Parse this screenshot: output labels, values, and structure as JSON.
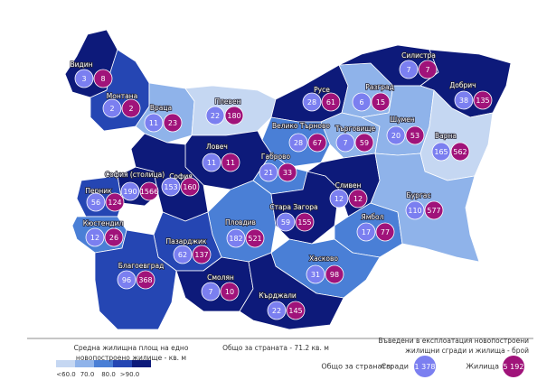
{
  "regions": [
    {
      "name": "Видин",
      "color": "#0d1a7a",
      "buildings": 3,
      "dwellings": 8
    },
    {
      "name": "Монтана",
      "color": "#2546b3",
      "buildings": 2,
      "dwellings": 2
    },
    {
      "name": "Враца",
      "color": "#8fb3ea",
      "buildings": 11,
      "dwellings": 23
    },
    {
      "name": "Плевен",
      "color": "#c5d7f2",
      "buildings": 22,
      "dwellings": 180
    },
    {
      "name": "Русе",
      "color": "#0d1a7a",
      "buildings": 28,
      "dwellings": 61
    },
    {
      "name": "Разград",
      "color": "#8fb3ea",
      "buildings": 6,
      "dwellings": 15
    },
    {
      "name": "Силистра",
      "color": "#0d1a7a",
      "buildings": 7,
      "dwellings": 7
    },
    {
      "name": "Добрич",
      "color": "#0d1a7a",
      "buildings": 38,
      "dwellings": 135
    },
    {
      "name": "Велико Търново",
      "color": "#4a7fd6",
      "buildings": 28,
      "dwellings": 67
    },
    {
      "name": "Търговище",
      "color": "#8fb3ea",
      "buildings": 7,
      "dwellings": 59
    },
    {
      "name": "Шумен",
      "color": "#8fb3ea",
      "buildings": 20,
      "dwellings": 53
    },
    {
      "name": "Варна",
      "color": "#c5d7f2",
      "buildings": 165,
      "dwellings": 562
    },
    {
      "name": "Ловеч",
      "color": "#0d1a7a",
      "buildings": 11,
      "dwellings": 11
    },
    {
      "name": "Габрово",
      "color": "#4a7fd6",
      "buildings": 21,
      "dwellings": 33
    },
    {
      "name": "София (столица)",
      "color": "#0d1a7a",
      "buildings": 190,
      "dwellings": 1566
    },
    {
      "name": "София",
      "color": "#0d1a7a",
      "buildings": 153,
      "dwellings": 160
    },
    {
      "name": "Перник",
      "color": "#2546b3",
      "buildings": 56,
      "dwellings": 124
    },
    {
      "name": "Кюстендил",
      "color": "#4a7fd6",
      "buildings": 12,
      "dwellings": 26
    },
    {
      "name": "Пловдив",
      "color": "#4a7fd6",
      "buildings": 182,
      "dwellings": 521
    },
    {
      "name": "Стара Загора",
      "color": "#0d1a7a",
      "buildings": 59,
      "dwellings": 155
    },
    {
      "name": "Сливен",
      "color": "#0d1a7a",
      "buildings": 12,
      "dwellings": 12
    },
    {
      "name": "Ямбол",
      "color": "#4a7fd6",
      "buildings": 17,
      "dwellings": 77
    },
    {
      "name": "Бургас",
      "color": "#8fb3ea",
      "buildings": 110,
      "dwellings": 577
    },
    {
      "name": "Пазарджик",
      "color": "#2546b3",
      "buildings": 62,
      "dwellings": 137
    },
    {
      "name": "Благоевград",
      "color": "#2546b3",
      "buildings": 96,
      "dwellings": 368
    },
    {
      "name": "Смолян",
      "color": "#0d1a7a",
      "buildings": 7,
      "dwellings": 10
    },
    {
      "name": "Хасково",
      "color": "#4a7fd6",
      "buildings": 31,
      "dwellings": 98
    },
    {
      "name": "Кърджали",
      "color": "#0d1a7a",
      "buildings": 22,
      "dwellings": 145
    }
  ],
  "legend_left": {
    "title": "Средна жилищна площ на едно новопостроено жилище - кв. м",
    "colors": [
      "#c5d7f2",
      "#8fb3ea",
      "#4a7fd6",
      "#2546b3",
      "#0d1a7a"
    ],
    "labels": [
      "<60.0",
      "70.0",
      "80.0",
      ">90.0"
    ]
  },
  "country_average": "Общо за страната - 71.2 кв. м",
  "legend_right": {
    "title": "Въведени в експлоатация новопостроени жилищни сгради и жилища - брой",
    "total_label": "Общо за страната:",
    "buildings": {
      "name": "Сгради",
      "color": "#7b7ff0",
      "total": "1 378"
    },
    "dwellings": {
      "name": "Жилища",
      "color": "#a0137a",
      "total": "5 192"
    }
  }
}
